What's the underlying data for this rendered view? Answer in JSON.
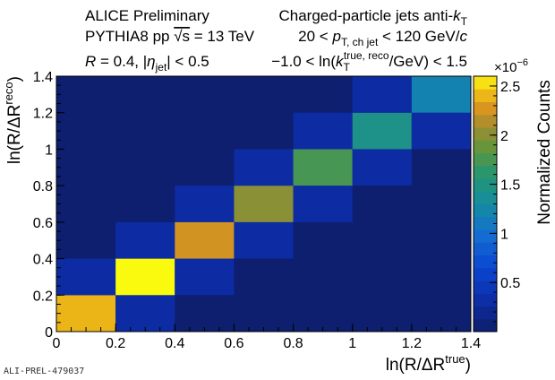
{
  "chart_data": {
    "type": "heatmap",
    "xlabel": "ln(R/ΔR^true)",
    "ylabel": "ln(R/ΔR^reco)",
    "zlabel": "Normalized Counts",
    "z_exponent_label": "×10^-6",
    "xlim": [
      0,
      1.4
    ],
    "ylim": [
      0,
      1.4
    ],
    "zlim": [
      0,
      2.6e-06
    ],
    "x_bin_edges": [
      0,
      0.2,
      0.4,
      0.6,
      0.8,
      1.0,
      1.2,
      1.4
    ],
    "y_bin_edges": [
      0,
      0.2,
      0.4,
      0.6,
      0.8,
      1.0,
      1.2,
      1.4
    ],
    "x_ticks": [
      "0",
      "0.2",
      "0.4",
      "0.6",
      "0.8",
      "1",
      "1.2",
      "1.4"
    ],
    "y_ticks": [
      "0",
      "0.2",
      "0.4",
      "0.6",
      "0.8",
      "1",
      "1.2",
      "1.4"
    ],
    "z_ticks": [
      "0.5",
      "1",
      "1.5",
      "2",
      "2.5"
    ],
    "z_tick_values": [
      5e-07,
      1e-06,
      1.5e-06,
      2e-06,
      2.5e-06
    ],
    "cells": [
      {
        "x": 0.1,
        "y": 0.1,
        "z": 2.4e-06
      },
      {
        "x": 0.3,
        "y": 0.1,
        "z": 3e-07
      },
      {
        "x": 0.1,
        "y": 0.3,
        "z": 3e-07
      },
      {
        "x": 0.3,
        "y": 0.3,
        "z": 2.6e-06
      },
      {
        "x": 0.5,
        "y": 0.3,
        "z": 3e-07
      },
      {
        "x": 0.3,
        "y": 0.5,
        "z": 3e-07
      },
      {
        "x": 0.5,
        "y": 0.5,
        "z": 2.25e-06
      },
      {
        "x": 0.7,
        "y": 0.5,
        "z": 3e-07
      },
      {
        "x": 0.5,
        "y": 0.7,
        "z": 3e-07
      },
      {
        "x": 0.7,
        "y": 0.7,
        "z": 2e-06
      },
      {
        "x": 0.9,
        "y": 0.7,
        "z": 3e-07
      },
      {
        "x": 0.7,
        "y": 0.9,
        "z": 3e-07
      },
      {
        "x": 0.9,
        "y": 0.9,
        "z": 1.75e-06
      },
      {
        "x": 1.1,
        "y": 0.9,
        "z": 3e-07
      },
      {
        "x": 0.9,
        "y": 1.1,
        "z": 3e-07
      },
      {
        "x": 1.1,
        "y": 1.1,
        "z": 1.45e-06
      },
      {
        "x": 1.3,
        "y": 1.1,
        "z": 3e-07
      },
      {
        "x": 1.1,
        "y": 1.3,
        "z": 3e-07
      },
      {
        "x": 1.3,
        "y": 1.3,
        "z": 1.2e-06
      }
    ],
    "background_z": 8e-08,
    "annotations": {
      "line1_left": "ALICE Preliminary",
      "line2_left_a": "PYTHIA8 pp ",
      "line2_left_sqrt": "√s",
      "line2_left_b": " = 13 TeV",
      "line3_left_R": "R",
      "line3_left_a": " = 0.4, |",
      "line3_left_eta": "η",
      "line3_left_sub": "jet",
      "line3_left_b": "| < 0.5",
      "line1_right_a": "Charged-particle jets anti-",
      "line1_right_k": "k",
      "line1_right_sub": "T",
      "line2_right_a": "20 < ",
      "line2_right_p": "p",
      "line2_right_sub": "T, ch jet",
      "line2_right_b": " < 120 GeV/",
      "line2_right_c": "c",
      "line3_right_a": "−1.0 < ln(",
      "line3_right_k": "k",
      "line3_right_sub": "T",
      "line3_right_sup": "true, reco",
      "line3_right_b": "/GeV) < 1.5"
    },
    "label_parts": {
      "x_base": "ln(R/ΔR",
      "x_sup": "true",
      "x_close": ")",
      "y_base": "ln(R/ΔR",
      "y_sup": "reco",
      "y_close": ")",
      "z_mult": "×10",
      "z_exp": "−6"
    },
    "watermark": "ALI-PREL-479037"
  },
  "colors": {
    "background_cell": "#0d1f6e",
    "axis": "#000000"
  }
}
